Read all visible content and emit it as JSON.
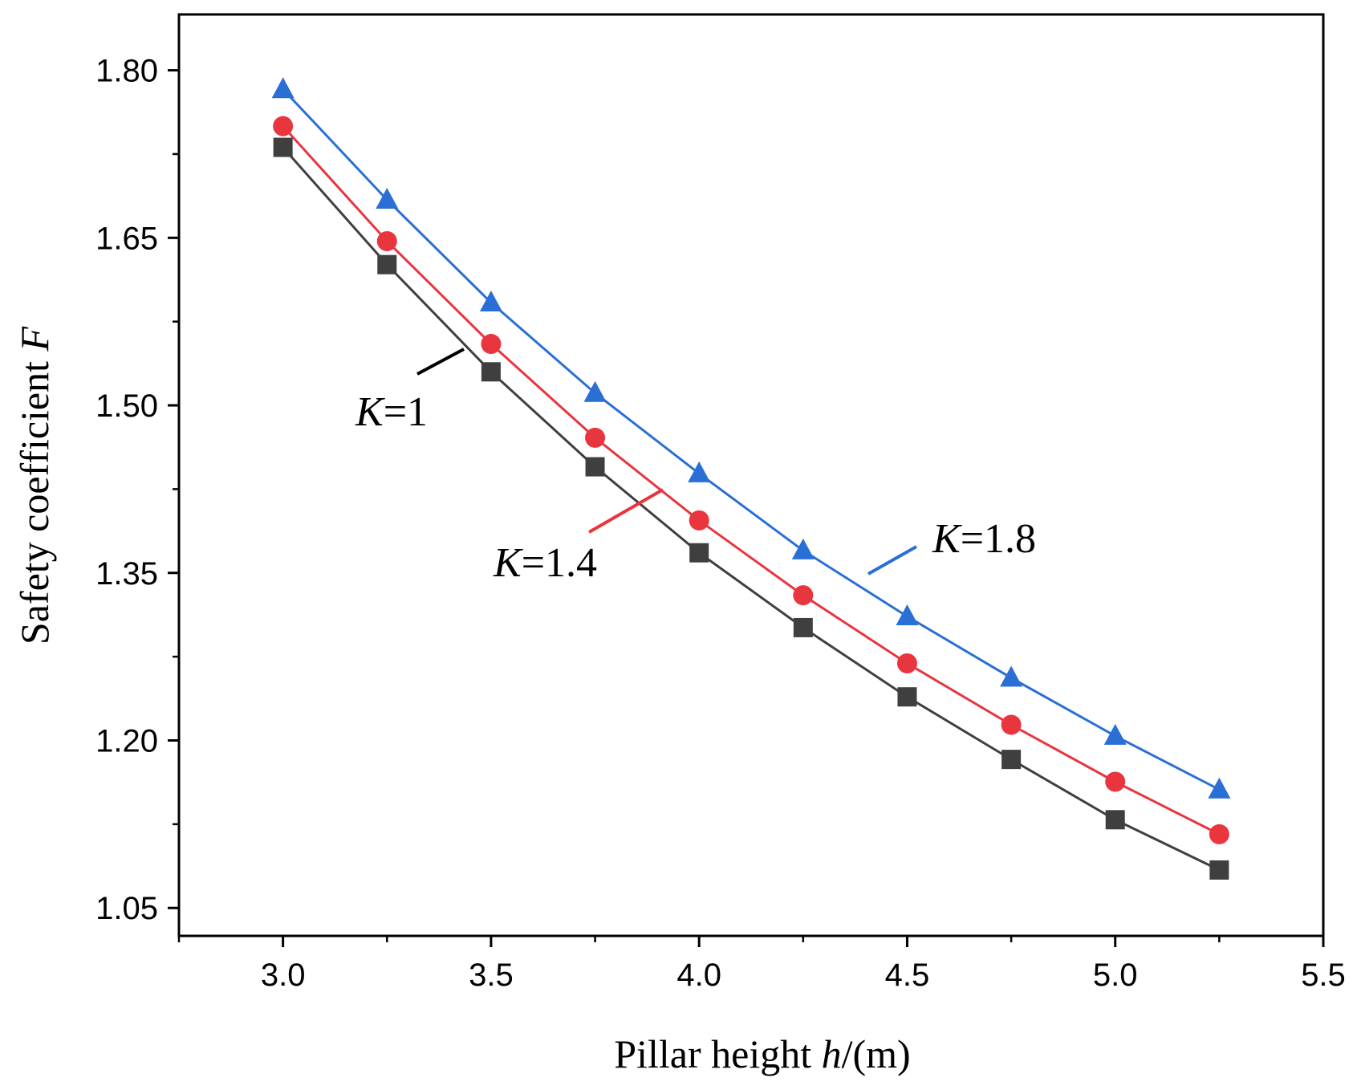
{
  "chart_data": {
    "type": "line",
    "title": "",
    "xlabel": {
      "prefix": "Pillar height ",
      "variable": "h",
      "suffix": "/(m)"
    },
    "ylabel": {
      "prefix": "Safety coefficient ",
      "variable": "F"
    },
    "xlim": [
      2.75,
      5.5
    ],
    "ylim": [
      1.025,
      1.85
    ],
    "x_ticks": [
      3.0,
      3.5,
      4.0,
      4.5,
      5.0,
      5.5
    ],
    "x_tick_labels": [
      "3.0",
      "3.5",
      "4.0",
      "4.5",
      "5.0",
      "5.5"
    ],
    "y_ticks": [
      1.05,
      1.2,
      1.35,
      1.5,
      1.65,
      1.8
    ],
    "y_tick_labels": [
      "1.05",
      "1.20",
      "1.35",
      "1.50",
      "1.65",
      "1.80"
    ],
    "grid": false,
    "x": [
      3.0,
      3.25,
      3.5,
      3.75,
      4.0,
      4.25,
      4.5,
      4.75,
      5.0,
      5.25
    ],
    "series": [
      {
        "name": "K=1",
        "label_variable": "K",
        "label_value": "=1",
        "color": "#3f3f3f",
        "marker": "square",
        "values": [
          1.731,
          1.626,
          1.53,
          1.445,
          1.368,
          1.301,
          1.239,
          1.183,
          1.129,
          1.084
        ]
      },
      {
        "name": "K=1.4",
        "label_variable": "K",
        "label_value": "=1.4",
        "color": "#e8353e",
        "marker": "circle",
        "values": [
          1.75,
          1.647,
          1.555,
          1.471,
          1.397,
          1.33,
          1.269,
          1.214,
          1.163,
          1.116
        ]
      },
      {
        "name": "K=1.8",
        "label_variable": "K",
        "label_value": "=1.8",
        "color": "#2a6fd6",
        "marker": "triangle",
        "values": [
          1.783,
          1.684,
          1.592,
          1.511,
          1.439,
          1.37,
          1.311,
          1.256,
          1.204,
          1.156
        ]
      }
    ]
  }
}
